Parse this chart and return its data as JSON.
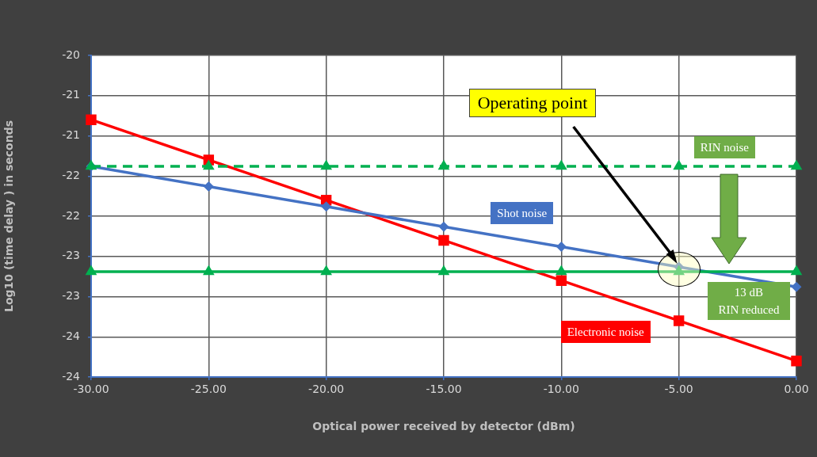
{
  "chart_data": {
    "type": "line",
    "xlabel": "Optical power received by detector (dBm)",
    "ylabel": "Log10 (time delay ) in seconds",
    "x": [
      -30,
      -25,
      -20,
      -15,
      -10,
      -5,
      0
    ],
    "xlim": [
      -30,
      0
    ],
    "xticks": [
      {
        "value": -30,
        "label": "-30.00"
      },
      {
        "value": -25,
        "label": "-25.00"
      },
      {
        "value": -20,
        "label": "-20.00"
      },
      {
        "value": -15,
        "label": "-15.00"
      },
      {
        "value": -10,
        "label": "-10.00"
      },
      {
        "value": -5,
        "label": "-5.00"
      },
      {
        "value": 0,
        "label": "0.00"
      }
    ],
    "ylim": [
      -24,
      -20
    ],
    "yticks": [
      {
        "value": -24,
        "label": "-24"
      },
      {
        "value": -23.5,
        "label": "-24"
      },
      {
        "value": -23,
        "label": "-23"
      },
      {
        "value": -22.5,
        "label": "-23"
      },
      {
        "value": -22,
        "label": "-22"
      },
      {
        "value": -21.5,
        "label": "-22"
      },
      {
        "value": -21,
        "label": "-21"
      },
      {
        "value": -20.5,
        "label": "-21"
      },
      {
        "value": -20,
        "label": "-20"
      }
    ],
    "grid": true,
    "legend": false,
    "series": [
      {
        "name": "RIN noise",
        "color": "#00b050",
        "marker": "triangle",
        "line_style": "dashed",
        "values": [
          -21.38,
          -21.38,
          -21.38,
          -21.38,
          -21.38,
          -21.38,
          -21.38
        ]
      },
      {
        "color": "#00b050",
        "marker": "triangle",
        "line_style": "solid",
        "values": [
          -22.69,
          -22.69,
          -22.69,
          -22.69,
          -22.69,
          -22.69,
          -22.69
        ]
      },
      {
        "name": "Shot noise",
        "color": "#4472c4",
        "marker": "diamond",
        "line_style": "solid",
        "values": [
          -21.38,
          -21.63,
          -21.88,
          -22.13,
          -22.38,
          -22.63,
          -22.88
        ]
      },
      {
        "name": "Electronic noise",
        "color": "#ff0000",
        "marker": "square",
        "line_style": "solid",
        "values": [
          -20.8,
          -21.3,
          -21.8,
          -22.3,
          -22.8,
          -23.3,
          -23.8
        ]
      }
    ],
    "annotations": [
      "Operating point",
      "13 dB\nRIN reduced"
    ]
  }
}
